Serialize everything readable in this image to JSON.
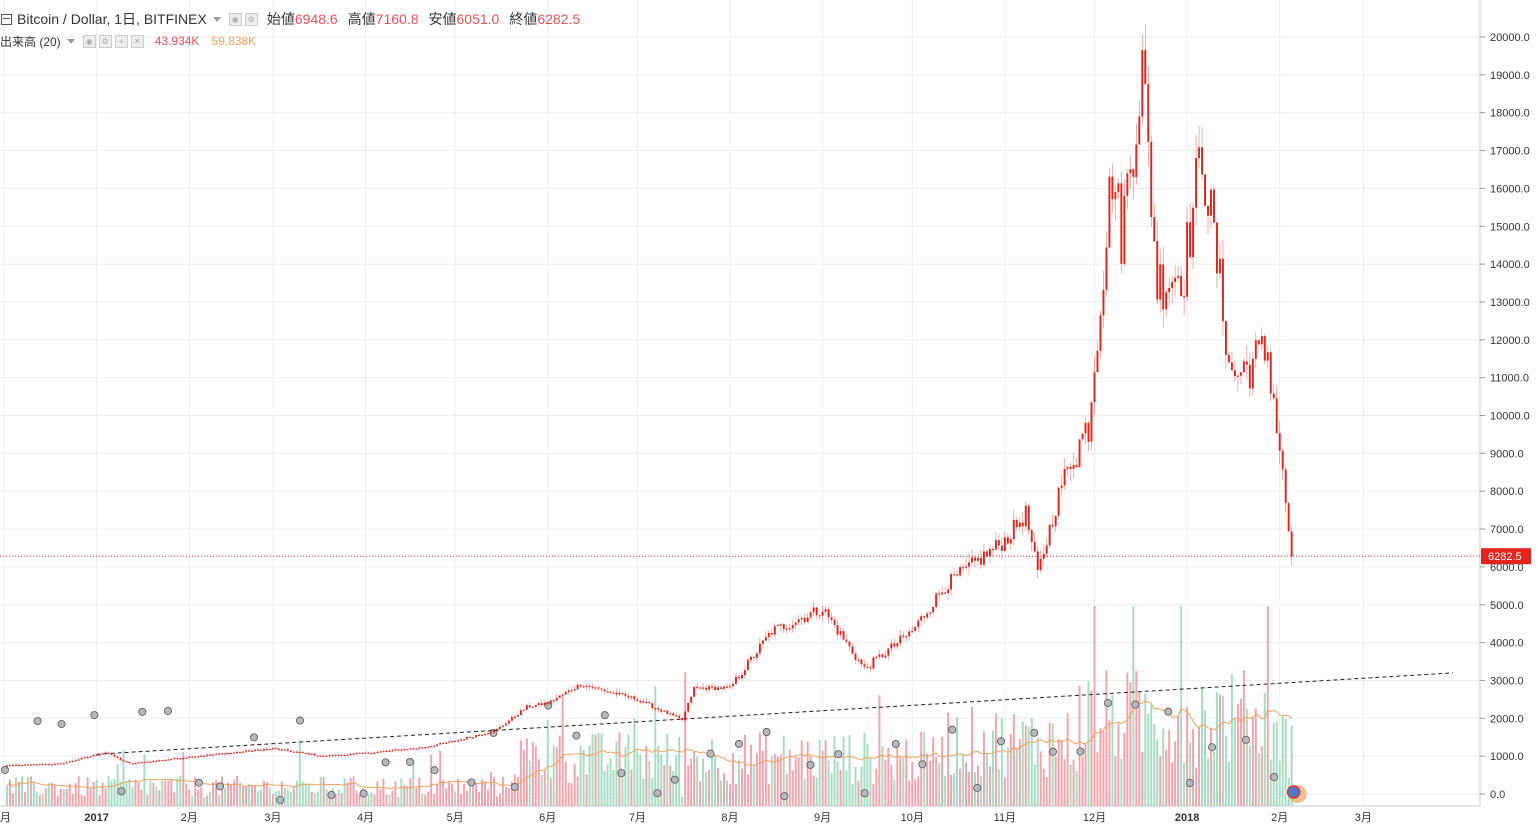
{
  "header": {
    "symbol": "Bitcoin / Dollar, 1日, BITFINEX",
    "ohlc": [
      {
        "label": "始値",
        "value": "6948.6"
      },
      {
        "label": "高値",
        "value": "7160.8"
      },
      {
        "label": "安値",
        "value": "6051.0"
      },
      {
        "label": "終値",
        "value": "6282.5"
      }
    ],
    "volume_label": "出来高 (20)",
    "volume_value": "43.934K",
    "volume_ma_value": "59.838K"
  },
  "colors": {
    "up": "#e0251c",
    "down": "#e0251c",
    "vol_up": "#f2a3ab",
    "vol_down": "#a6dcc0",
    "ma": "#f0a25c",
    "grid": "#e9edf2",
    "price_line": "#e0251c"
  },
  "chart_data": {
    "type": "candlestick",
    "title": "Bitcoin / Dollar, 1日, BITFINEX",
    "y_axis": {
      "min": 0,
      "max": 20000,
      "ticks": [
        "0.0",
        "1000.0",
        "2000.0",
        "3000.0",
        "4000.0",
        "5000.0",
        "6000.0",
        "7000.0",
        "8000.0",
        "9000.0",
        "10000.0",
        "11000.0",
        "12000.0",
        "13000.0",
        "14000.0",
        "15000.0",
        "16000.0",
        "17000.0",
        "18000.0",
        "19000.0",
        "20000.0"
      ]
    },
    "x_axis": {
      "labels": [
        "月",
        "2017",
        "2月",
        "3月",
        "4月",
        "5月",
        "6月",
        "7月",
        "8月",
        "9月",
        "10月",
        "11月",
        "12月",
        "2018",
        "2月",
        "3月"
      ]
    },
    "last_price": "6282.5",
    "price_points": [
      {
        "date": "2016-12-01",
        "close": 750
      },
      {
        "date": "2016-12-20",
        "close": 800
      },
      {
        "date": "2017-01-04",
        "close": 1100
      },
      {
        "date": "2017-01-12",
        "close": 800
      },
      {
        "date": "2017-02-01",
        "close": 980
      },
      {
        "date": "2017-03-01",
        "close": 1200
      },
      {
        "date": "2017-03-18",
        "close": 1000
      },
      {
        "date": "2017-04-01",
        "close": 1080
      },
      {
        "date": "2017-04-20",
        "close": 1230
      },
      {
        "date": "2017-05-01",
        "close": 1400
      },
      {
        "date": "2017-05-15",
        "close": 1700
      },
      {
        "date": "2017-05-25",
        "close": 2300
      },
      {
        "date": "2017-06-01",
        "close": 2400
      },
      {
        "date": "2017-06-12",
        "close": 2900
      },
      {
        "date": "2017-07-01",
        "close": 2500
      },
      {
        "date": "2017-07-16",
        "close": 1950
      },
      {
        "date": "2017-07-20",
        "close": 2800
      },
      {
        "date": "2017-08-01",
        "close": 2800
      },
      {
        "date": "2017-08-15",
        "close": 4300
      },
      {
        "date": "2017-09-01",
        "close": 4900
      },
      {
        "date": "2017-09-15",
        "close": 3300
      },
      {
        "date": "2017-10-01",
        "close": 4300
      },
      {
        "date": "2017-10-12",
        "close": 5500
      },
      {
        "date": "2017-11-01",
        "close": 6700
      },
      {
        "date": "2017-11-08",
        "close": 7400
      },
      {
        "date": "2017-11-12",
        "close": 5800
      },
      {
        "date": "2017-11-20",
        "close": 8200
      },
      {
        "date": "2017-11-29",
        "close": 9800
      },
      {
        "date": "2017-12-07",
        "close": 16500
      },
      {
        "date": "2017-12-10",
        "close": 14800
      },
      {
        "date": "2017-12-17",
        "close": 19200
      },
      {
        "date": "2017-12-22",
        "close": 13500
      },
      {
        "date": "2017-12-31",
        "close": 13900
      },
      {
        "date": "2018-01-06",
        "close": 17000
      },
      {
        "date": "2018-01-16",
        "close": 11000
      },
      {
        "date": "2018-01-28",
        "close": 11700
      },
      {
        "date": "2018-02-01",
        "close": 9100
      },
      {
        "date": "2018-02-05",
        "close": 6282
      }
    ],
    "trendline": [
      {
        "date": "2017-01-01",
        "value": 1050
      },
      {
        "date": "2018-03-31",
        "value": 3200
      }
    ],
    "volume_max": 60000
  }
}
